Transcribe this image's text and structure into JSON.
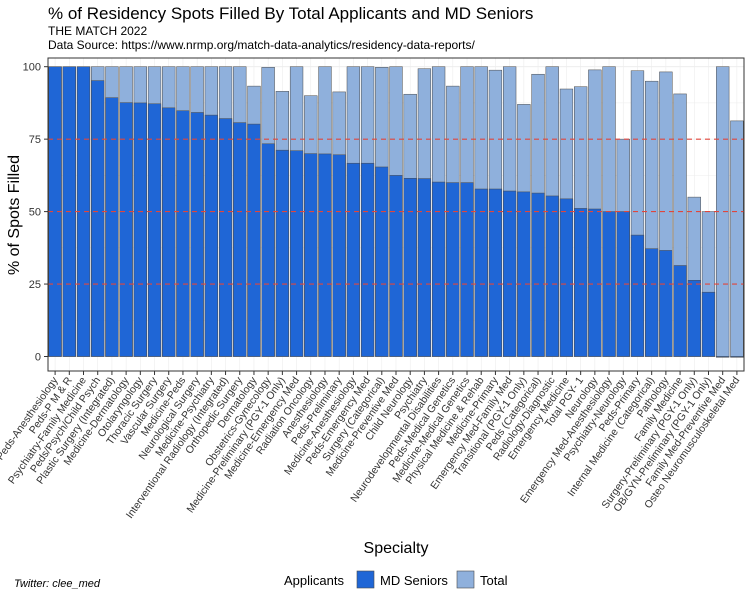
{
  "chart_data": {
    "type": "bar",
    "title": "% of Residency Spots Filled By Total Applicants and MD Seniors",
    "subtitle_lines": [
      "THE MATCH 2022",
      "Data Source: https://www.nrmp.org/match-data-analytics/residency-data-reports/"
    ],
    "xlabel": "Specialty",
    "ylabel": "% of Spots Filled",
    "ylim": [
      -5,
      103
    ],
    "yticks": [
      0,
      25,
      50,
      75,
      100
    ],
    "reference_lines": [
      25,
      50,
      75
    ],
    "grid": true,
    "legend_title": "Applicants",
    "legend_position": "bottom",
    "caption": "Twitter: clee_med",
    "colors": {
      "md_seniors": "#1f66d6",
      "total": "#8fb0dc",
      "bar_border": "#4a4a4a",
      "reference_line": "#e0463c",
      "grid": "#ececec"
    },
    "categories": [
      "Peds-Anesthesiology",
      "Peds-P M & R",
      "Psychiatry-Family Medicine",
      "Peds/Psych/Child Psych",
      "Plastic Surgery (Integrated)",
      "Medicine-Dermatology",
      "Otolaryngology",
      "Thoracic Surgery",
      "Vascular Surgery",
      "Medicine-Peds",
      "Neurological Surgery",
      "Medicine-Psychiatry",
      "Interventional Radiology (Integrated)",
      "Orthopedic Surgery",
      "Dermatology",
      "Obstetrics-Gynecology",
      "Medicine-Preliminary (PGY-1 Only)",
      "Medicine-Emergency Med",
      "Radiation Oncology",
      "Anesthesiology",
      "Peds-Preliminary",
      "Medicine-Anesthesiology",
      "Peds-Emergency Med",
      "Surgery (Categorical)",
      "Medicine-Preventive Med",
      "Child Neurology",
      "Psychiatry",
      "Neurodevelopmental Disabilities",
      "Peds-Medical Genetics",
      "Medicine-Medical Genetics",
      "Physical Medicine & Rehab",
      "Medicine-Primary",
      "Emergency Med-Family Med",
      "Transitional (PGY-1 Only)",
      "Peds (Categorical)",
      "Radiology-Diagnostic",
      "Emergency Medicine",
      "Total PGY- 1",
      "Neurology",
      "Emergency Med-Anesthesiology",
      "Psychiatry-Neurology",
      "Peds-Primary",
      "Internal Medicine (Categorical)",
      "Pathology",
      "Family Medicine",
      "Surgery-Preliminary (PGY-1 Only)",
      "OB/GYN-Preliminary (PGY-1 Only)",
      "Family Med-Preventive Med",
      "Osteo Neuromusculoskeletal Med"
    ],
    "series": [
      {
        "name": "MD Seniors",
        "values": [
          100,
          100,
          100,
          95.2,
          89.3,
          87.6,
          87.5,
          87.2,
          85.8,
          84.8,
          84.2,
          83.3,
          82.1,
          80.7,
          80.2,
          73.4,
          71.2,
          71.0,
          70.0,
          69.9,
          69.6,
          66.7,
          66.7,
          65.4,
          62.5,
          61.5,
          61.4,
          60.2,
          60.0,
          60.0,
          57.8,
          57.8,
          57.1,
          56.8,
          56.4,
          55.4,
          54.4,
          51.1,
          50.9,
          50.0,
          50.0,
          41.9,
          37.2,
          36.6,
          31.4,
          26.3,
          22.2,
          0,
          0
        ]
      },
      {
        "name": "Total",
        "values": [
          100,
          100,
          100,
          100,
          100,
          100,
          100,
          100,
          100,
          100,
          100,
          100,
          100,
          100,
          93.3,
          99.8,
          91.5,
          100,
          90.0,
          100,
          91.3,
          100,
          100,
          99.8,
          100,
          90.5,
          99.3,
          100,
          93.3,
          100,
          100,
          98.8,
          100,
          87.0,
          97.4,
          100,
          92.3,
          93.1,
          98.9,
          100,
          75.0,
          98.6,
          95.0,
          98.2,
          90.6,
          55.0,
          50.0,
          100,
          81.3
        ]
      }
    ]
  }
}
